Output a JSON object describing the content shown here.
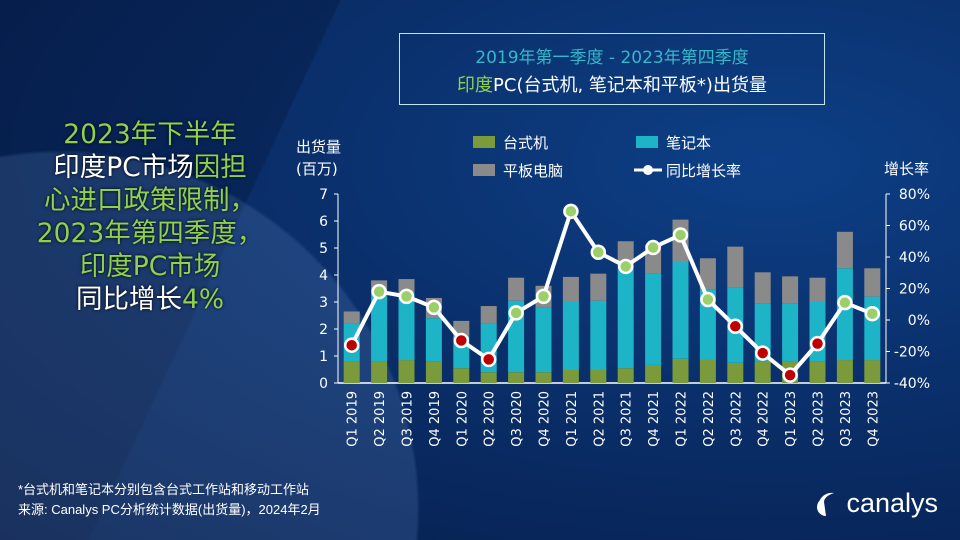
{
  "title": {
    "line1": "2019年第一季度  - 2023年第四季度",
    "line2_green": "印度",
    "line2_white": "PC(台式机, 笔记本和平板*)出货量"
  },
  "headline": {
    "l1": "2023年下半年",
    "l2a": "印度PC市场",
    "l2b": "因担",
    "l3": "心进口政策限制，",
    "l4": "2023年第四季度，",
    "l5": "印度PC市场",
    "l6a": "同比增长",
    "l6b": "4%"
  },
  "footnote": {
    "line1": "*台式机和笔记本分别包含台式工作站和移动工作站",
    "line2": "来源: Canalys PC分析统计数据(出货量)，2024年2月"
  },
  "logo": {
    "text": "canalys",
    "icon": "canalys-swoosh-icon"
  },
  "colors": {
    "desktop": "#7b9a3c",
    "notebook": "#1db4c8",
    "tablet": "#8a8a8a",
    "positive": "#9ccf6a",
    "negative": "#c00000"
  },
  "chart_data": {
    "type": "bar",
    "stacked": true,
    "categories": [
      "Q1 2019",
      "Q2 2019",
      "Q3 2019",
      "Q4 2019",
      "Q1 2020",
      "Q2 2020",
      "Q3 2020",
      "Q4 2020",
      "Q1 2021",
      "Q2 2021",
      "Q3 2021",
      "Q4 2021",
      "Q1 2022",
      "Q2 2022",
      "Q3 2022",
      "Q4 2022",
      "Q1 2023",
      "Q2 2023",
      "Q3 2023",
      "Q4 2023"
    ],
    "series": [
      {
        "name": "台式机",
        "values": [
          0.8,
          0.8,
          0.85,
          0.8,
          0.55,
          0.4,
          0.4,
          0.4,
          0.5,
          0.5,
          0.55,
          0.67,
          0.9,
          0.87,
          0.75,
          0.8,
          0.8,
          0.8,
          0.85,
          0.85
        ]
      },
      {
        "name": "笔记本",
        "values": [
          1.4,
          2.6,
          2.45,
          1.6,
          1.2,
          1.8,
          2.65,
          2.4,
          2.5,
          2.55,
          3.7,
          3.4,
          3.6,
          2.6,
          2.8,
          2.15,
          2.15,
          2.2,
          3.4,
          2.35
        ]
      },
      {
        "name": "平板电脑",
        "values": [
          0.45,
          0.4,
          0.55,
          0.75,
          0.55,
          0.65,
          0.85,
          0.8,
          0.93,
          1.0,
          1.0,
          1.05,
          1.55,
          1.15,
          1.5,
          1.15,
          1.0,
          0.9,
          1.35,
          1.05
        ]
      }
    ],
    "line": {
      "name": "同比增长率",
      "values": [
        -16,
        18,
        15,
        8,
        -13,
        -25,
        4.5,
        15,
        69,
        43,
        34,
        46,
        54,
        13,
        -4,
        -21,
        -35,
        -15,
        11,
        4
      ]
    },
    "ylabel": "出货量",
    "ylabel2": "(百万)",
    "ylim": [
      0,
      7
    ],
    "yticks": [
      "0",
      "1",
      "2",
      "3",
      "4",
      "5",
      "6",
      "7"
    ],
    "y2label": "增长率",
    "y2lim": [
      -40,
      80
    ],
    "y2ticks": [
      "-40%",
      "-20%",
      "0%",
      "20%",
      "40%",
      "60%",
      "80%"
    ],
    "legend": "top"
  }
}
